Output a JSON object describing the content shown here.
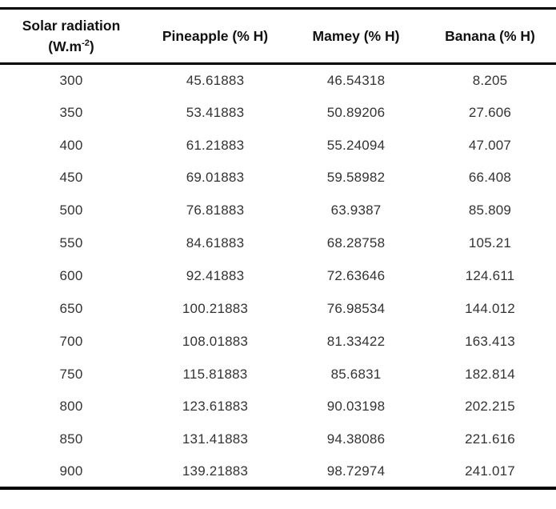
{
  "colors": {
    "background": "#ffffff",
    "border": "#000000",
    "header_text": "#111111",
    "body_text": "#333333"
  },
  "table": {
    "header": {
      "solar_line1": "Solar radiation",
      "solar_unit_prefix": "(W.m",
      "solar_unit_sup": "-2",
      "solar_unit_suffix": ")",
      "pineapple": "Pineapple (% H)",
      "mamey": "Mamey (% H)",
      "banana": "Banana (% H)"
    },
    "rows": [
      {
        "radiation": "300",
        "pineapple": "45.61883",
        "mamey": "46.54318",
        "banana": "8.205"
      },
      {
        "radiation": "350",
        "pineapple": "53.41883",
        "mamey": "50.89206",
        "banana": "27.606"
      },
      {
        "radiation": "400",
        "pineapple": "61.21883",
        "mamey": "55.24094",
        "banana": "47.007"
      },
      {
        "radiation": "450",
        "pineapple": "69.01883",
        "mamey": "59.58982",
        "banana": "66.408"
      },
      {
        "radiation": "500",
        "pineapple": "76.81883",
        "mamey": "63.9387",
        "banana": "85.809"
      },
      {
        "radiation": "550",
        "pineapple": "84.61883",
        "mamey": "68.28758",
        "banana": "105.21"
      },
      {
        "radiation": "600",
        "pineapple": "92.41883",
        "mamey": "72.63646",
        "banana": "124.611"
      },
      {
        "radiation": "650",
        "pineapple": "100.21883",
        "mamey": "76.98534",
        "banana": "144.012"
      },
      {
        "radiation": "700",
        "pineapple": "108.01883",
        "mamey": "81.33422",
        "banana": "163.413"
      },
      {
        "radiation": "750",
        "pineapple": "115.81883",
        "mamey": "85.6831",
        "banana": "182.814"
      },
      {
        "radiation": "800",
        "pineapple": "123.61883",
        "mamey": "90.03198",
        "banana": "202.215"
      },
      {
        "radiation": "850",
        "pineapple": "131.41883",
        "mamey": "94.38086",
        "banana": "221.616"
      },
      {
        "radiation": "900",
        "pineapple": "139.21883",
        "mamey": "98.72974",
        "banana": "241.017"
      }
    ]
  }
}
